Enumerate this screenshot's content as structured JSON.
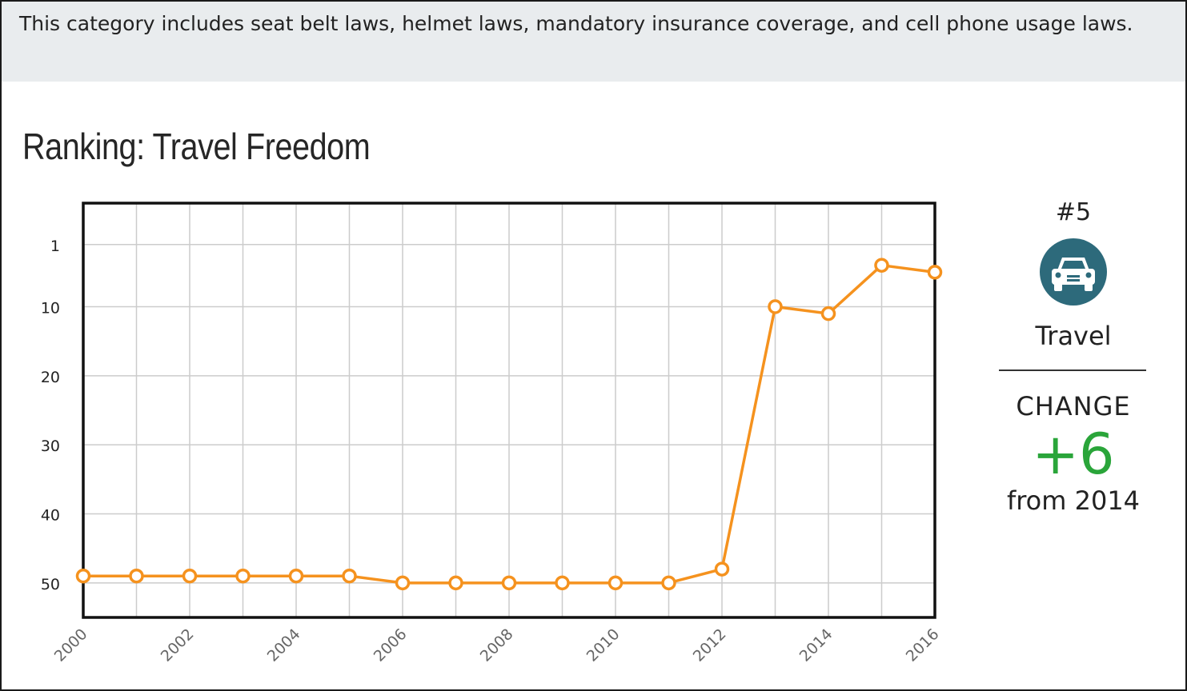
{
  "description": "This category includes seat belt laws, helmet laws, mandatory insurance coverage, and cell phone usage laws.",
  "title": "Ranking: Travel Freedom",
  "summary": {
    "rank": "#5",
    "icon": "car-icon",
    "icon_color": "#2d6a7b",
    "category": "Travel",
    "change_label": "CHANGE",
    "change_value": "+6",
    "change_color": "#2aa53a",
    "change_from": "from 2014"
  },
  "chart_data": {
    "type": "line",
    "title": "Ranking: Travel Freedom",
    "xlabel": "",
    "ylabel": "",
    "x": [
      2000,
      2001,
      2002,
      2003,
      2004,
      2005,
      2006,
      2007,
      2008,
      2009,
      2010,
      2011,
      2012,
      2013,
      2014,
      2015,
      2016
    ],
    "series": [
      {
        "color": "#f5921e",
        "values": [
          49,
          49,
          49,
          49,
          49,
          49,
          50,
          50,
          50,
          50,
          50,
          50,
          48,
          10,
          11,
          4,
          5
        ]
      }
    ],
    "y_inverted": true,
    "ylim": [
      55,
      -5
    ],
    "y_ticks": [
      1,
      10,
      20,
      30,
      40,
      50
    ],
    "x_ticks": [
      2000,
      2002,
      2004,
      2006,
      2008,
      2010,
      2012,
      2014,
      2016
    ],
    "grid": true
  }
}
